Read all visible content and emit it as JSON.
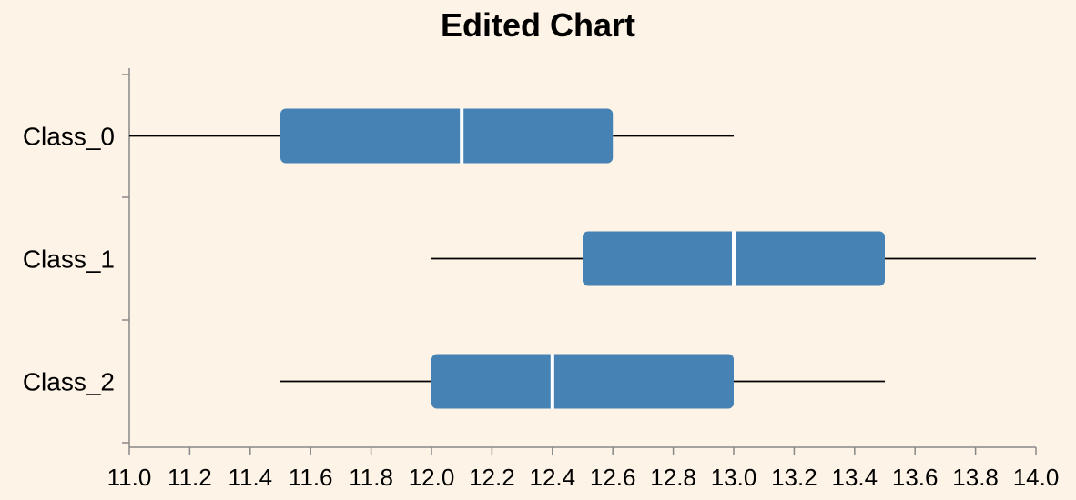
{
  "chart_data": {
    "type": "boxplot",
    "title": "Edited Chart",
    "orientation": "horizontal",
    "xlabel": "",
    "ylabel": "",
    "xlim": [
      11.0,
      14.0
    ],
    "x_ticks": [
      "11.0",
      "11.2",
      "11.4",
      "11.6",
      "11.8",
      "12.0",
      "12.2",
      "12.4",
      "12.6",
      "12.8",
      "13.0",
      "13.2",
      "13.4",
      "13.6",
      "13.8",
      "14.0"
    ],
    "categories": [
      "Class_0",
      "Class_1",
      "Class_2"
    ],
    "boxes": [
      {
        "category": "Class_0",
        "min": 11.0,
        "q1": 11.5,
        "median": 12.1,
        "q3": 12.6,
        "max": 13.0
      },
      {
        "category": "Class_1",
        "min": 12.0,
        "q1": 12.5,
        "median": 13.0,
        "q3": 13.5,
        "max": 14.0
      },
      {
        "category": "Class_2",
        "min": 11.5,
        "q1": 12.0,
        "median": 12.4,
        "q3": 13.0,
        "max": 13.5
      }
    ],
    "box_color": "#4682b4",
    "median_color": "#ffffff",
    "whisker_color": "#000000",
    "background": "#fdf3e6",
    "grid": false,
    "legend": "none"
  }
}
